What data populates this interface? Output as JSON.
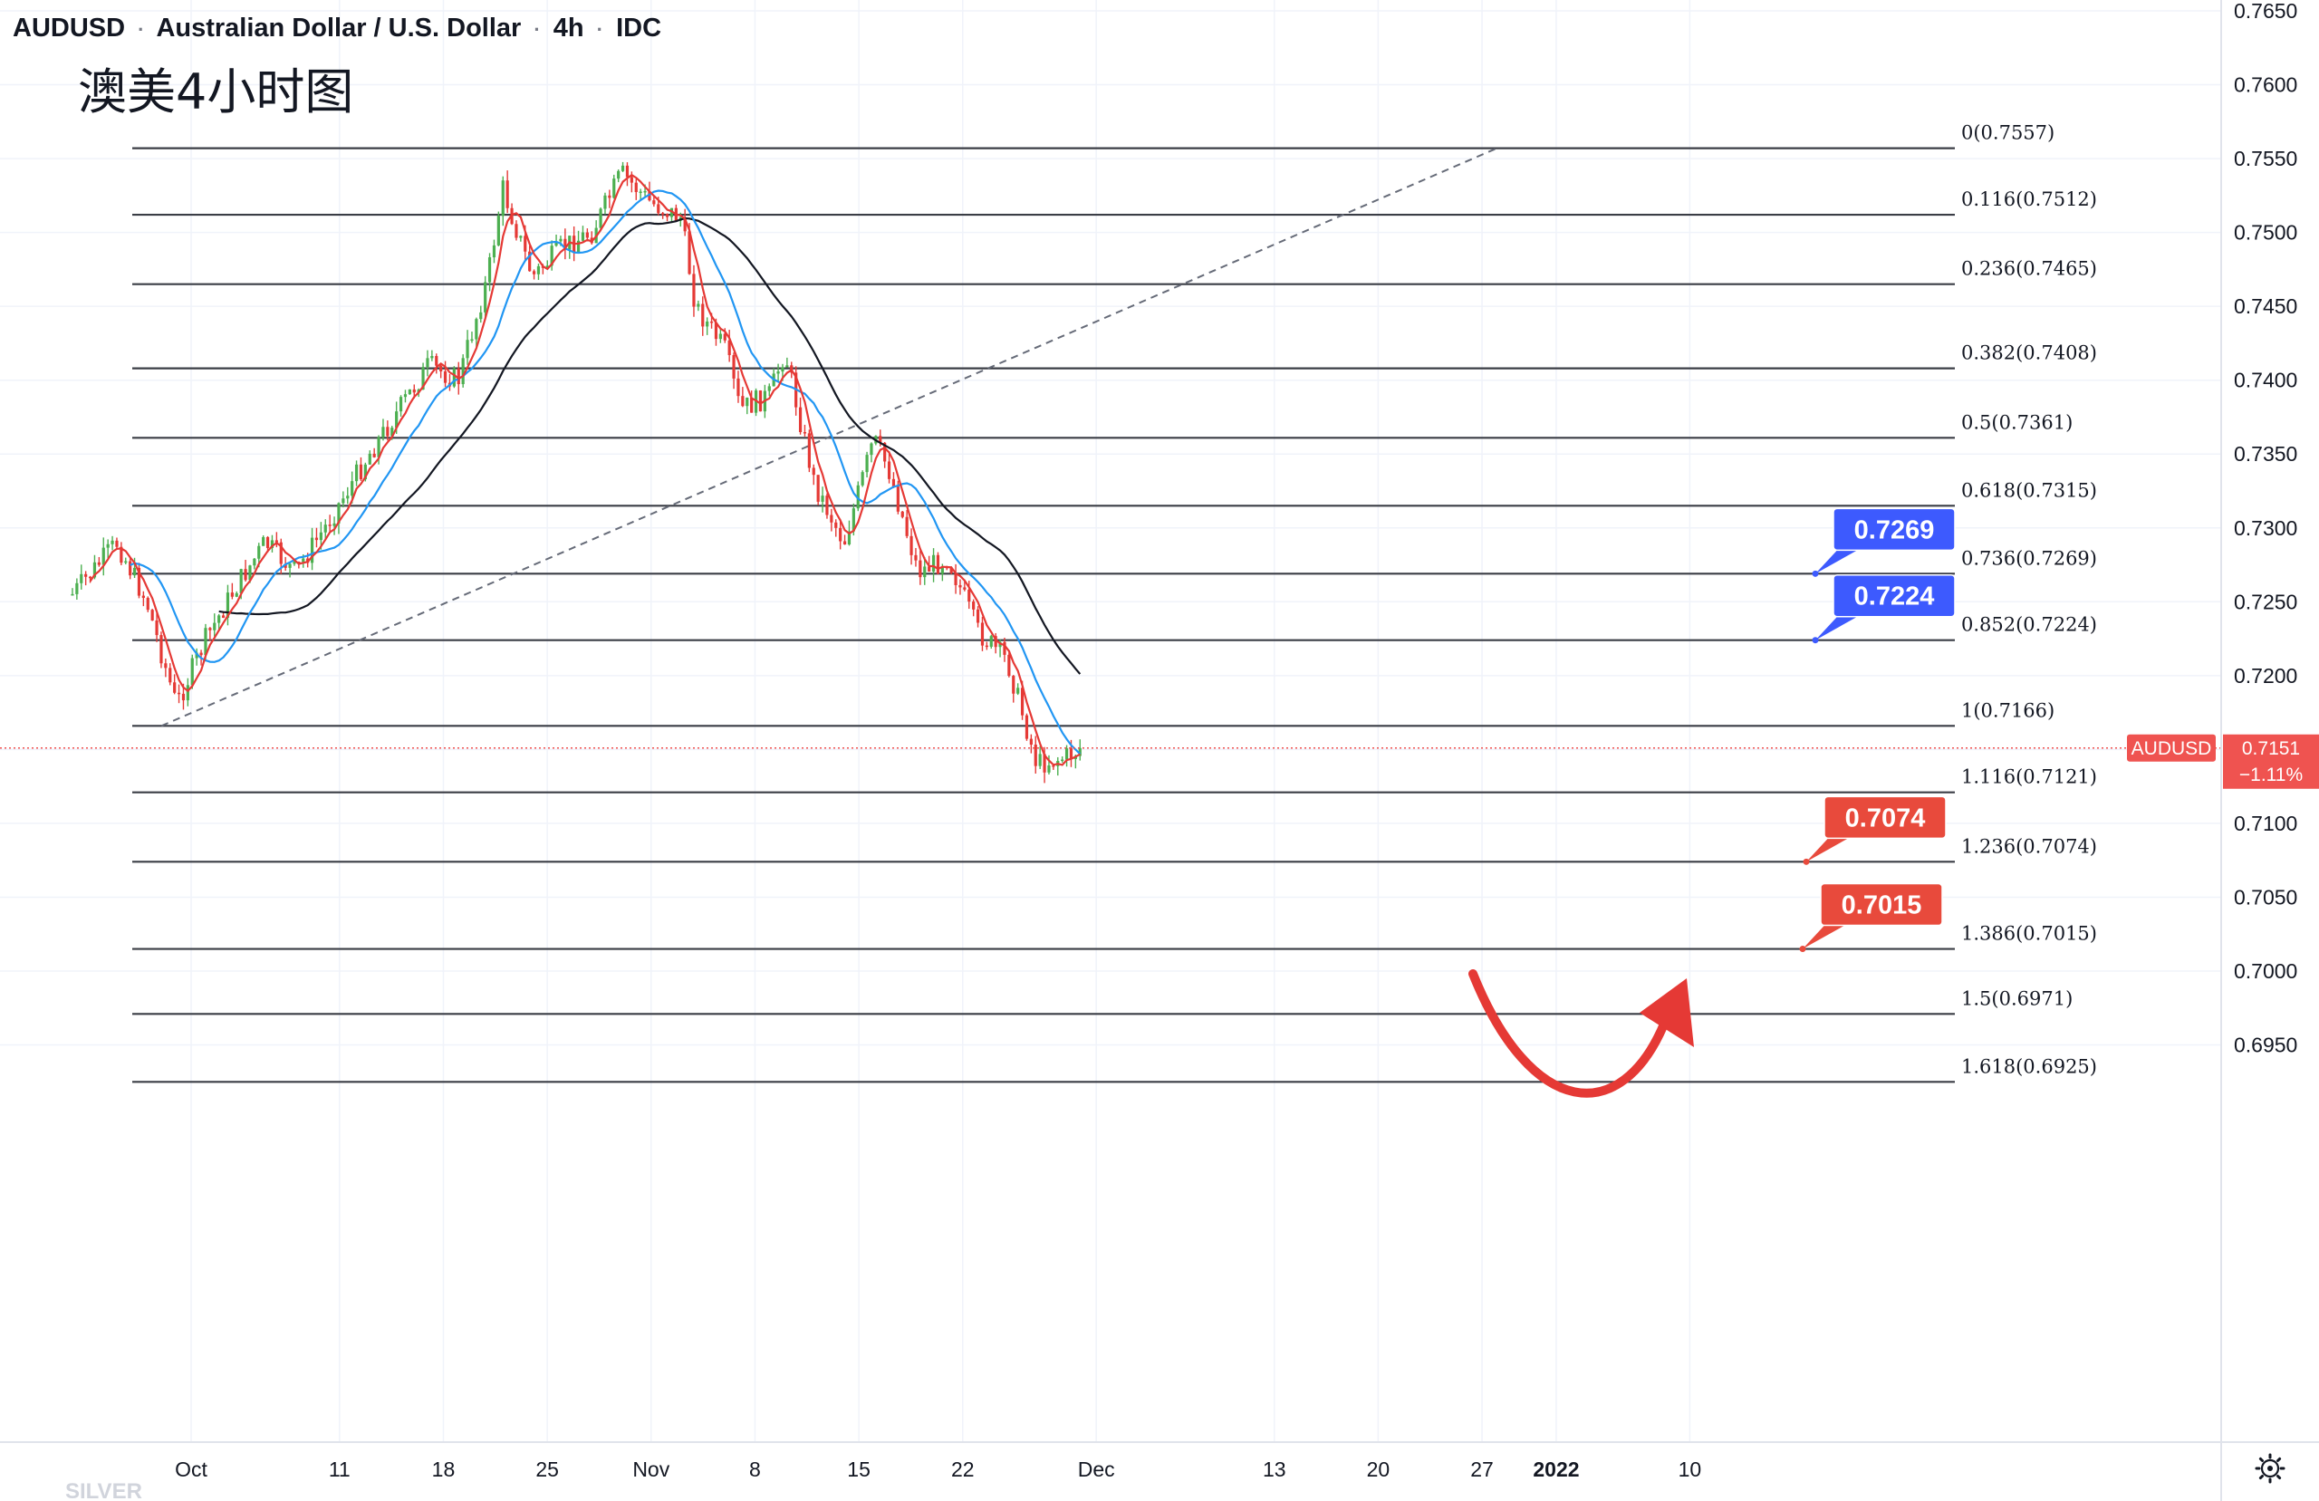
{
  "header": {
    "symbol": "AUDUSD",
    "name": "Australian Dollar / U.S. Dollar",
    "interval": "4h",
    "source": "IDC",
    "subtitle": "澳美4小时图"
  },
  "colors": {
    "up": "#26a69a",
    "down": "#ef5350",
    "candle_up": "#4caf50",
    "candle_down": "#e53935",
    "ma_fast": "#e53935",
    "ma_mid": "#2196f3",
    "ma_slow": "#131722",
    "fib_line": "#3a3d45",
    "callout_blue": "#3d5afe",
    "callout_red": "#e84a3c",
    "arrow": "#e53935",
    "current_price": "#ef5350"
  },
  "chart_data": {
    "type": "candlestick",
    "symbol": "AUDUSD",
    "interval": "4h",
    "ylim": [
      0.6925,
      0.765
    ],
    "y_ticks": [
      "0.7650",
      "0.7600",
      "0.7550",
      "0.7500",
      "0.7450",
      "0.7400",
      "0.7350",
      "0.7300",
      "0.7250",
      "0.7200",
      "0.7150",
      "0.7100",
      "0.7050",
      "0.7000",
      "0.6950"
    ],
    "x_ticks": [
      {
        "label": "Oct",
        "date": "2021-10-01"
      },
      {
        "label": "11",
        "date": "2021-10-11"
      },
      {
        "label": "18",
        "date": "2021-10-18"
      },
      {
        "label": "25",
        "date": "2021-10-25"
      },
      {
        "label": "Nov",
        "date": "2021-11-01"
      },
      {
        "label": "8",
        "date": "2021-11-08"
      },
      {
        "label": "15",
        "date": "2021-11-15"
      },
      {
        "label": "22",
        "date": "2021-11-22"
      },
      {
        "label": "Dec",
        "date": "2021-12-01"
      },
      {
        "label": "13",
        "date": "2021-12-13"
      },
      {
        "label": "20",
        "date": "2021-12-20"
      },
      {
        "label": "27",
        "date": "2021-12-27"
      },
      {
        "label": "2022",
        "date": "2022-01-01"
      },
      {
        "label": "10",
        "date": "2022-01-10"
      }
    ],
    "current_price": {
      "label": "AUDUSD",
      "value": "0.7151",
      "change": "−1.11%"
    },
    "fib_levels": [
      {
        "label": "0(0.7557)",
        "level": 0,
        "price": 0.7557
      },
      {
        "label": "0.116(0.7512)",
        "level": 0.116,
        "price": 0.7512
      },
      {
        "label": "0.236(0.7465)",
        "level": 0.236,
        "price": 0.7465
      },
      {
        "label": "0.382(0.7408)",
        "level": 0.382,
        "price": 0.7408
      },
      {
        "label": "0.5(0.7361)",
        "level": 0.5,
        "price": 0.7361
      },
      {
        "label": "0.618(0.7315)",
        "level": 0.618,
        "price": 0.7315
      },
      {
        "label": "0.736(0.7269)",
        "level": 0.736,
        "price": 0.7269
      },
      {
        "label": "0.852(0.7224)",
        "level": 0.852,
        "price": 0.7224
      },
      {
        "label": "1(0.7166)",
        "level": 1,
        "price": 0.7166
      },
      {
        "label": "1.116(0.7121)",
        "level": 1.116,
        "price": 0.7121
      },
      {
        "label": "1.236(0.7074)",
        "level": 1.236,
        "price": 0.7074
      },
      {
        "label": "1.386(0.7015)",
        "level": 1.386,
        "price": 0.7015
      },
      {
        "label": "1.5(0.6971)",
        "level": 1.5,
        "price": 0.6971
      },
      {
        "label": "1.618(0.6925)",
        "level": 1.618,
        "price": 0.6925
      }
    ],
    "callouts": [
      {
        "text": "0.7269",
        "price": 0.7269,
        "color": "blue"
      },
      {
        "text": "0.7224",
        "price": 0.7224,
        "color": "blue"
      },
      {
        "text": "0.7074",
        "price": 0.7074,
        "color": "red"
      },
      {
        "text": "0.7015",
        "price": 0.7015,
        "color": "red"
      }
    ],
    "trend_line": {
      "from": {
        "date": "2021-09-29",
        "price": 0.7166
      },
      "to": {
        "date": "2021-12-28",
        "price": 0.7557
      }
    },
    "path_points": [
      {
        "date": "2021-09-23",
        "price": 0.7255
      },
      {
        "date": "2021-09-26",
        "price": 0.729
      },
      {
        "date": "2021-09-28",
        "price": 0.725
      },
      {
        "date": "2021-09-30",
        "price": 0.718
      },
      {
        "date": "2021-10-02",
        "price": 0.7225
      },
      {
        "date": "2021-10-04",
        "price": 0.726
      },
      {
        "date": "2021-10-06",
        "price": 0.729
      },
      {
        "date": "2021-10-08",
        "price": 0.727
      },
      {
        "date": "2021-10-10",
        "price": 0.73
      },
      {
        "date": "2021-10-13",
        "price": 0.735
      },
      {
        "date": "2021-10-15",
        "price": 0.738
      },
      {
        "date": "2021-10-17",
        "price": 0.741
      },
      {
        "date": "2021-10-19",
        "price": 0.74
      },
      {
        "date": "2021-10-21",
        "price": 0.747
      },
      {
        "date": "2021-10-22",
        "price": 0.753
      },
      {
        "date": "2021-10-24",
        "price": 0.747
      },
      {
        "date": "2021-10-26",
        "price": 0.749
      },
      {
        "date": "2021-10-28",
        "price": 0.75
      },
      {
        "date": "2021-10-30",
        "price": 0.754
      },
      {
        "date": "2021-11-01",
        "price": 0.752
      },
      {
        "date": "2021-11-03",
        "price": 0.751
      },
      {
        "date": "2021-11-04",
        "price": 0.745
      },
      {
        "date": "2021-11-06",
        "price": 0.742
      },
      {
        "date": "2021-11-07",
        "price": 0.738
      },
      {
        "date": "2021-11-09",
        "price": 0.739
      },
      {
        "date": "2021-11-10",
        "price": 0.742
      },
      {
        "date": "2021-11-12",
        "price": 0.733
      },
      {
        "date": "2021-11-14",
        "price": 0.729
      },
      {
        "date": "2021-11-16",
        "price": 0.736
      },
      {
        "date": "2021-11-17",
        "price": 0.734
      },
      {
        "date": "2021-11-19",
        "price": 0.727
      },
      {
        "date": "2021-11-21",
        "price": 0.728
      },
      {
        "date": "2021-11-23",
        "price": 0.723
      },
      {
        "date": "2021-11-25",
        "price": 0.721
      },
      {
        "date": "2021-11-27",
        "price": 0.714
      },
      {
        "date": "2021-11-29",
        "price": 0.7145
      },
      {
        "date": "2021-11-30",
        "price": 0.7151
      }
    ]
  },
  "watermark": "SILVER"
}
